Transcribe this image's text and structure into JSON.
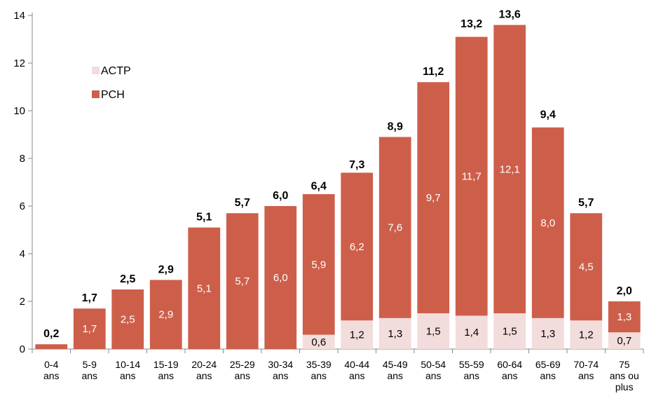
{
  "chart_data": {
    "type": "bar",
    "stacked": true,
    "categories": [
      [
        "0-4",
        "ans"
      ],
      [
        "5-9",
        "ans"
      ],
      [
        "10-14",
        "ans"
      ],
      [
        "15-19",
        "ans"
      ],
      [
        "20-24",
        "ans"
      ],
      [
        "25-29",
        "ans"
      ],
      [
        "30-34",
        "ans"
      ],
      [
        "35-39",
        "ans"
      ],
      [
        "40-44",
        "ans"
      ],
      [
        "45-49",
        "ans"
      ],
      [
        "50-54",
        "ans"
      ],
      [
        "55-59",
        "ans"
      ],
      [
        "60-64",
        "ans"
      ],
      [
        "65-69",
        "ans"
      ],
      [
        "70-74",
        "ans"
      ],
      [
        "75",
        "ans ou",
        "plus"
      ]
    ],
    "series": [
      {
        "name": "ACTP",
        "color": "#f3dcdc",
        "values": [
          0,
          0,
          0,
          0,
          0,
          0,
          0,
          0.6,
          1.2,
          1.3,
          1.5,
          1.4,
          1.5,
          1.3,
          1.2,
          0.7
        ],
        "labels": [
          "",
          "",
          "",
          "",
          "",
          "",
          "",
          "0,6",
          "1,2",
          "1,3",
          "1,5",
          "1,4",
          "1,5",
          "1,3",
          "1,2",
          "0,7"
        ]
      },
      {
        "name": "PCH",
        "color": "#cd5f4a",
        "values": [
          0.2,
          1.7,
          2.5,
          2.9,
          5.1,
          5.7,
          6.0,
          5.9,
          6.2,
          7.6,
          9.7,
          11.7,
          12.1,
          8.0,
          4.5,
          1.3
        ],
        "labels": [
          "",
          "1,7",
          "2,5",
          "2,9",
          "5,1",
          "5,7",
          "6,0",
          "5,9",
          "6,2",
          "7,6",
          "9,7",
          "11,7",
          "12,1",
          "8,0",
          "4,5",
          "1,3"
        ]
      }
    ],
    "totals": [
      0.2,
      1.7,
      2.5,
      2.9,
      5.1,
      5.7,
      6.0,
      6.4,
      7.3,
      8.9,
      11.2,
      13.2,
      13.6,
      9.4,
      5.7,
      2.0
    ],
    "total_labels": [
      "0,2",
      "1,7",
      "2,5",
      "2,9",
      "5,1",
      "5,7",
      "6,0",
      "6,4",
      "7,3",
      "8,9",
      "11,2",
      "13,2",
      "13,6",
      "9,4",
      "5,7",
      "2,0"
    ],
    "y_ticks": [
      0,
      2,
      4,
      6,
      8,
      10,
      12,
      14
    ],
    "ylim": [
      0,
      14
    ],
    "grid": false,
    "legend_position": "top-left",
    "title": "",
    "xlabel": "",
    "ylabel": ""
  }
}
